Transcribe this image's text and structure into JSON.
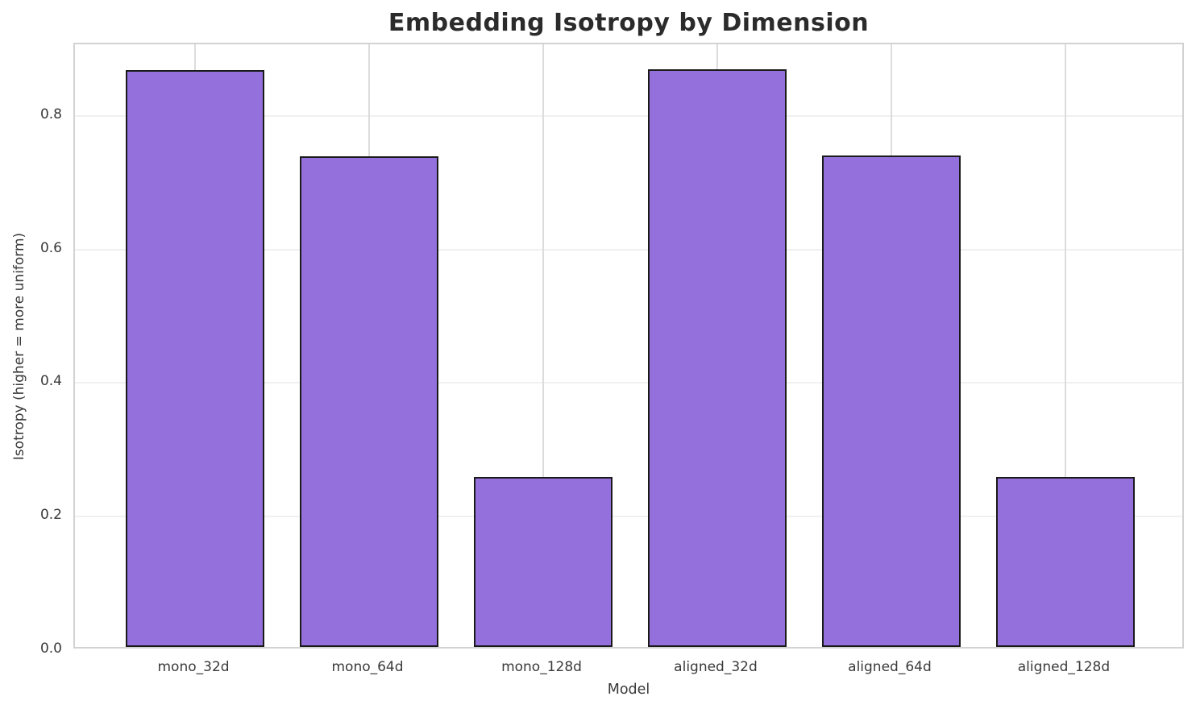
{
  "chart_data": {
    "type": "bar",
    "title": "Embedding Isotropy by Dimension",
    "xlabel": "Model",
    "ylabel": "Isotropy (higher = more uniform)",
    "categories": [
      "mono_32d",
      "mono_64d",
      "mono_128d",
      "aligned_32d",
      "aligned_64d",
      "aligned_128d"
    ],
    "values": [
      0.863,
      0.735,
      0.255,
      0.865,
      0.736,
      0.255
    ],
    "ylim": [
      0,
      0.907
    ],
    "yticks": [
      0.0,
      0.2,
      0.4,
      0.6,
      0.8
    ],
    "bar_color": "#9370DB",
    "bar_edge_color": "#1a1a1a",
    "grid": true,
    "legend_position": "none"
  }
}
